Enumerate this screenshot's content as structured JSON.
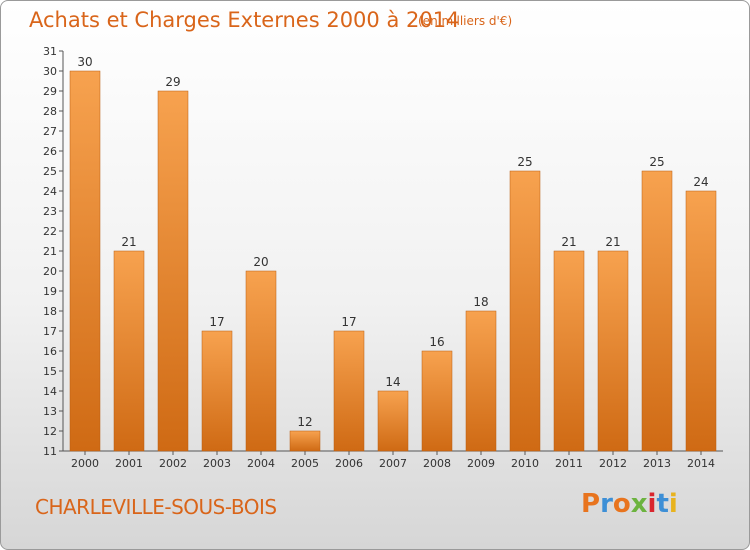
{
  "header": {
    "title": "Achats et Charges Externes 2000 à 2014",
    "subtitle": "(en milliers d'€)"
  },
  "footer": {
    "place": "CHARLEVILLE-SOUS-BOIS",
    "logo_text": "Proxiti",
    "logo_colors": [
      "#e8741e",
      "#3d8fd6",
      "#e8741e",
      "#6cb33f",
      "#d9262e",
      "#3d8fd6",
      "#e8b31e"
    ]
  },
  "colors": {
    "bar_top": "#f7a24f",
    "bar_bottom": "#cf6a14",
    "bar_edge": "#b85c10",
    "text_accent": "#d9651a"
  },
  "chart_data": {
    "type": "bar",
    "categories": [
      "2000",
      "2001",
      "2002",
      "2003",
      "2004",
      "2005",
      "2006",
      "2007",
      "2008",
      "2009",
      "2010",
      "2011",
      "2012",
      "2013",
      "2014"
    ],
    "values": [
      30,
      21,
      29,
      17,
      20,
      12,
      17,
      14,
      16,
      18,
      25,
      21,
      21,
      25,
      24
    ],
    "title": "Achats et Charges Externes 2000 à 2014",
    "subtitle": "(en milliers d'€)",
    "ylim": [
      11,
      31
    ],
    "yticks": [
      11,
      12,
      13,
      14,
      15,
      16,
      17,
      18,
      19,
      20,
      21,
      22,
      23,
      24,
      25,
      26,
      27,
      28,
      29,
      30,
      31
    ],
    "grid": false,
    "data_labels": true
  }
}
